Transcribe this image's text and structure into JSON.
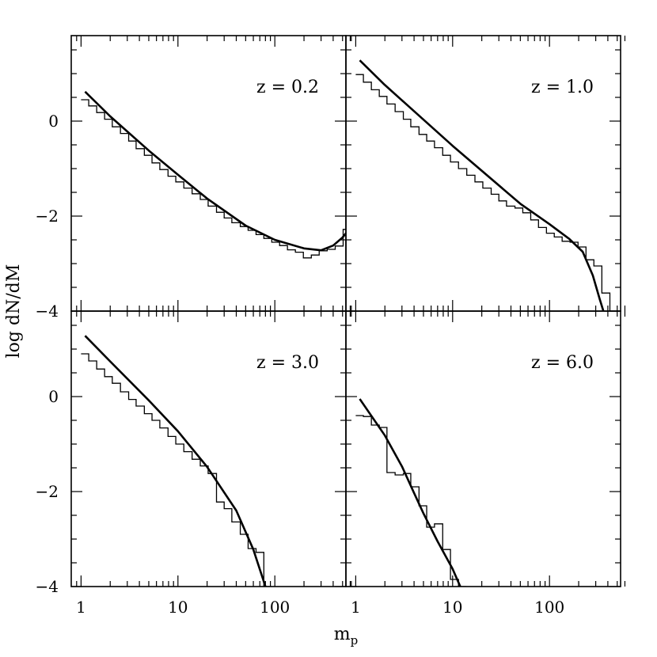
{
  "figure": {
    "ylabel": "log dN/dM",
    "xlabel": "m",
    "xlabel_sub": "p"
  },
  "chart_data": [
    {
      "type": "line",
      "title": "z = 0.2",
      "xscale": "log",
      "xlim": [
        0.9,
        600
      ],
      "ylim": [
        -4,
        1.8
      ],
      "xticks": [
        1,
        10,
        100
      ],
      "yticks": [
        0,
        -2,
        -4
      ],
      "series": [
        {
          "style": "smooth",
          "points": [
            [
              1.1,
              0.62
            ],
            [
              2,
              0.1
            ],
            [
              5,
              -0.62
            ],
            [
              10,
              -1.13
            ],
            [
              20,
              -1.63
            ],
            [
              50,
              -2.2
            ],
            [
              100,
              -2.5
            ],
            [
              200,
              -2.68
            ],
            [
              300,
              -2.72
            ],
            [
              400,
              -2.62
            ],
            [
              500,
              -2.45
            ],
            [
              600,
              -2.25
            ]
          ]
        },
        {
          "style": "step",
          "points": [
            [
              1.0,
              0.45
            ],
            [
              1.2,
              0.32
            ],
            [
              1.45,
              0.18
            ],
            [
              1.75,
              0.04
            ],
            [
              2.1,
              -0.12
            ],
            [
              2.55,
              -0.26
            ],
            [
              3.1,
              -0.42
            ],
            [
              3.7,
              -0.58
            ],
            [
              4.5,
              -0.72
            ],
            [
              5.4,
              -0.88
            ],
            [
              6.5,
              -1.02
            ],
            [
              7.9,
              -1.16
            ],
            [
              9.5,
              -1.28
            ],
            [
              11.5,
              -1.41
            ],
            [
              14,
              -1.53
            ],
            [
              17,
              -1.65
            ],
            [
              20.5,
              -1.79
            ],
            [
              25,
              -1.92
            ],
            [
              30,
              -2.04
            ],
            [
              36,
              -2.14
            ],
            [
              44,
              -2.22
            ],
            [
              53,
              -2.3
            ],
            [
              64,
              -2.39
            ],
            [
              77,
              -2.47
            ],
            [
              93,
              -2.55
            ],
            [
              112,
              -2.62
            ],
            [
              135,
              -2.71
            ],
            [
              163,
              -2.76
            ],
            [
              197,
              -2.88
            ],
            [
              238,
              -2.82
            ],
            [
              287,
              -2.73
            ],
            [
              347,
              -2.7
            ],
            [
              420,
              -2.63
            ],
            [
              507,
              -2.28
            ],
            [
              600,
              -2.28
            ]
          ]
        }
      ]
    },
    {
      "type": "line",
      "title": "z = 1.0",
      "xscale": "log",
      "xlim": [
        0.9,
        600
      ],
      "ylim": [
        -4,
        1.8
      ],
      "xticks": [
        1,
        10,
        100
      ],
      "yticks": [
        0,
        -2,
        -4
      ],
      "series": [
        {
          "style": "smooth",
          "points": [
            [
              1.1,
              1.28
            ],
            [
              2,
              0.76
            ],
            [
              10,
              -0.52
            ],
            [
              50,
              -1.74
            ],
            [
              100,
              -2.17
            ],
            [
              160,
              -2.48
            ],
            [
              220,
              -2.75
            ],
            [
              280,
              -3.25
            ],
            [
              330,
              -3.75
            ],
            [
              360,
              -4.0
            ]
          ]
        },
        {
          "style": "step",
          "points": [
            [
              1.0,
              0.98
            ],
            [
              1.2,
              0.82
            ],
            [
              1.45,
              0.66
            ],
            [
              1.75,
              0.52
            ],
            [
              2.1,
              0.36
            ],
            [
              2.55,
              0.2
            ],
            [
              3.1,
              0.04
            ],
            [
              3.7,
              -0.12
            ],
            [
              4.5,
              -0.28
            ],
            [
              5.4,
              -0.42
            ],
            [
              6.5,
              -0.56
            ],
            [
              7.9,
              -0.72
            ],
            [
              9.5,
              -0.86
            ],
            [
              11.5,
              -1.0
            ],
            [
              14,
              -1.14
            ],
            [
              17,
              -1.28
            ],
            [
              20.5,
              -1.41
            ],
            [
              25,
              -1.54
            ],
            [
              30,
              -1.68
            ],
            [
              36,
              -1.79
            ],
            [
              44,
              -1.83
            ],
            [
              53,
              -1.93
            ],
            [
              64,
              -2.08
            ],
            [
              77,
              -2.24
            ],
            [
              93,
              -2.36
            ],
            [
              112,
              -2.44
            ],
            [
              135,
              -2.53
            ],
            [
              163,
              -2.55
            ],
            [
              197,
              -2.65
            ],
            [
              238,
              -2.92
            ],
            [
              287,
              -3.05
            ],
            [
              347,
              -3.62
            ],
            [
              420,
              -4.0
            ]
          ]
        }
      ]
    },
    {
      "type": "line",
      "title": "z = 3.0",
      "xscale": "log",
      "xlim": [
        0.9,
        600
      ],
      "ylim": [
        -4,
        1.8
      ],
      "xticks": [
        1,
        10,
        100
      ],
      "yticks": [
        0,
        -2,
        -4
      ],
      "series": [
        {
          "style": "smooth",
          "points": [
            [
              1.1,
              1.28
            ],
            [
              2,
              0.74
            ],
            [
              5,
              -0.08
            ],
            [
              10,
              -0.73
            ],
            [
              20,
              -1.48
            ],
            [
              40,
              -2.4
            ],
            [
              60,
              -3.22
            ],
            [
              80,
              -4.0
            ]
          ]
        },
        {
          "style": "step",
          "points": [
            [
              1.0,
              0.9
            ],
            [
              1.2,
              0.75
            ],
            [
              1.45,
              0.58
            ],
            [
              1.75,
              0.42
            ],
            [
              2.1,
              0.28
            ],
            [
              2.55,
              0.1
            ],
            [
              3.1,
              -0.06
            ],
            [
              3.7,
              -0.2
            ],
            [
              4.5,
              -0.36
            ],
            [
              5.4,
              -0.5
            ],
            [
              6.5,
              -0.66
            ],
            [
              7.9,
              -0.84
            ],
            [
              9.5,
              -1.0
            ],
            [
              11.5,
              -1.16
            ],
            [
              14,
              -1.32
            ],
            [
              17,
              -1.46
            ],
            [
              20.5,
              -1.62
            ],
            [
              25,
              -2.22
            ],
            [
              30,
              -2.36
            ],
            [
              36,
              -2.64
            ],
            [
              44,
              -2.9
            ],
            [
              53,
              -3.2
            ],
            [
              64,
              -3.28
            ],
            [
              77,
              -4.0
            ]
          ]
        }
      ]
    },
    {
      "type": "line",
      "title": "z = 6.0",
      "xscale": "log",
      "xlim": [
        0.9,
        600
      ],
      "ylim": [
        -4,
        1.8
      ],
      "xticks": [
        1,
        10,
        100
      ],
      "yticks": [
        0,
        -2,
        -4
      ],
      "series": [
        {
          "style": "smooth",
          "points": [
            [
              1.1,
              -0.05
            ],
            [
              2,
              -0.82
            ],
            [
              3,
              -1.47
            ],
            [
              4,
              -2.03
            ],
            [
              5,
              -2.46
            ],
            [
              7,
              -3.05
            ],
            [
              10,
              -3.63
            ],
            [
              12,
              -4.0
            ]
          ]
        },
        {
          "style": "step",
          "points": [
            [
              1.0,
              -0.4
            ],
            [
              1.2,
              -0.42
            ],
            [
              1.45,
              -0.6
            ],
            [
              1.75,
              -0.65
            ],
            [
              2.1,
              -1.6
            ],
            [
              2.55,
              -1.65
            ],
            [
              3.1,
              -1.62
            ],
            [
              3.7,
              -1.9
            ],
            [
              4.5,
              -2.3
            ],
            [
              5.4,
              -2.75
            ],
            [
              6.5,
              -2.68
            ],
            [
              7.9,
              -3.22
            ],
            [
              9.5,
              -3.85
            ],
            [
              11.5,
              -4.0
            ]
          ]
        }
      ]
    }
  ]
}
